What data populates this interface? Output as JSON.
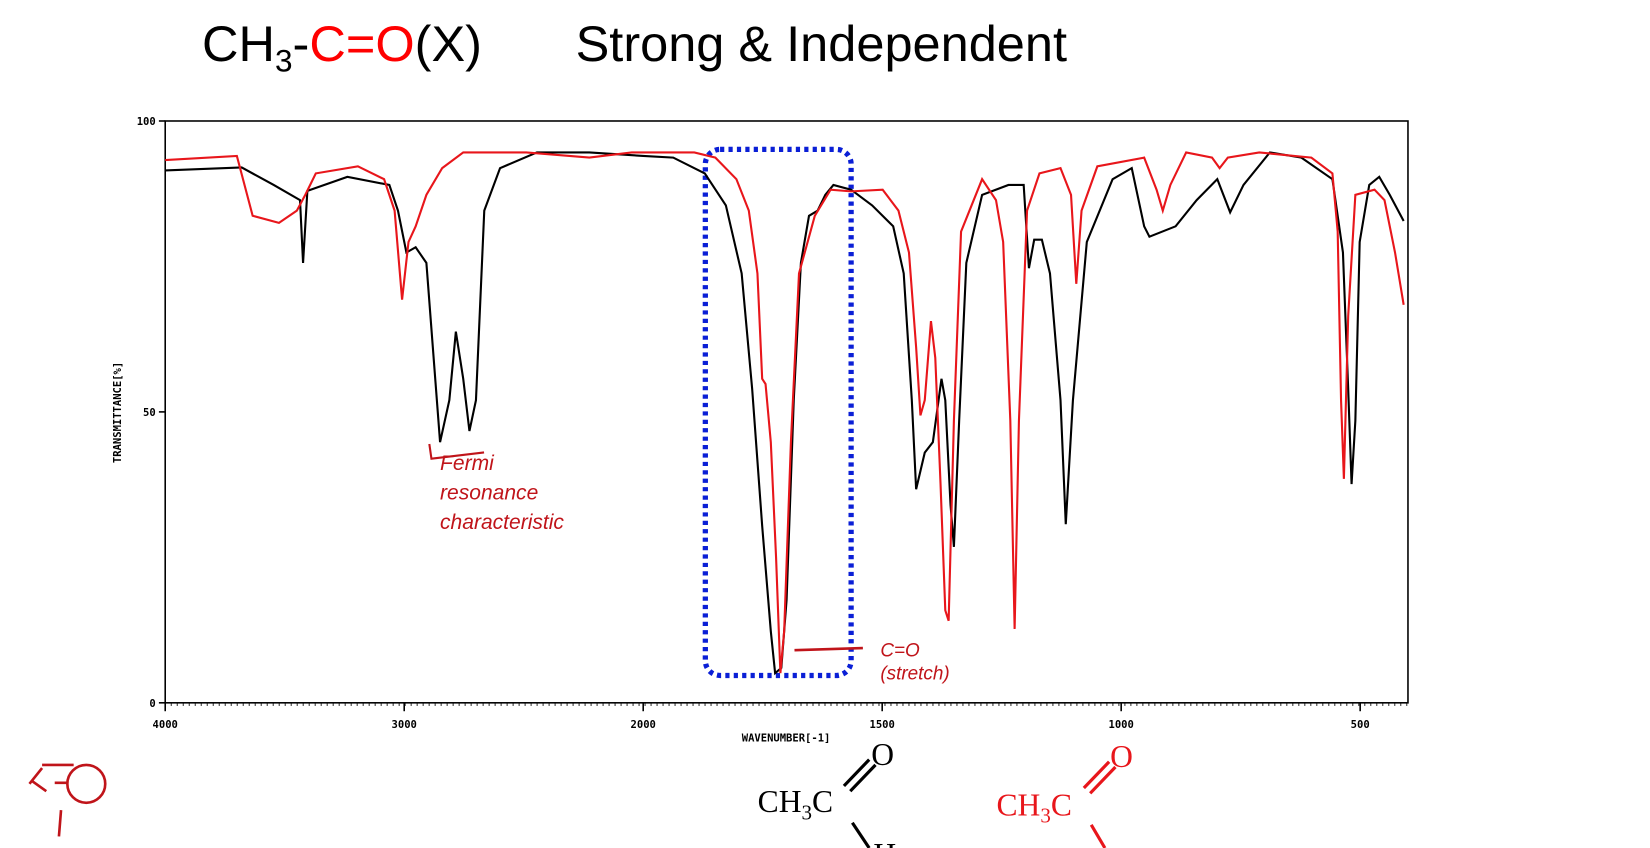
{
  "chart_data": {
    "type": "line",
    "title": [
      "CH",
      "3",
      "-",
      "C=O",
      "(X)",
      "Strong & Independent"
    ],
    "xlabel": "WAVENUMBER[-1]",
    "ylabel": "TRANSMITTANCE[%]",
    "xlim": [
      4000,
      400
    ],
    "x_break": 2000,
    "x_break_stretch": 2,
    "xticks": [
      4000,
      3000,
      2000,
      1500,
      1000,
      500
    ],
    "ylim": [
      0,
      100
    ],
    "yticks": [
      0,
      50,
      100
    ],
    "highlight_box": [
      1870,
      1565
    ],
    "annotations": [
      {
        "lines": [
          "Fermi",
          "resonance",
          "characteristic"
        ],
        "x": 2850,
        "y": 40
      },
      {
        "lines": [
          "C=O",
          "(stretch)"
        ],
        "x": 1680,
        "y": 8
      }
    ],
    "series": [
      {
        "color": "#000000",
        "x": [
          4000,
          3680,
          3546,
          3436,
          3423,
          3405,
          3238,
          3062,
          3026,
          2991,
          2952,
          2907,
          2850,
          2811,
          2784,
          2753,
          2727,
          2700,
          2665,
          2599,
          2445,
          2225,
          2000,
          1937,
          1871,
          1827,
          1794,
          1772,
          1751,
          1733,
          1724,
          1711,
          1700,
          1685,
          1670,
          1653,
          1635,
          1619,
          1602,
          1565,
          1521,
          1477,
          1455,
          1438,
          1429,
          1411,
          1394,
          1376,
          1368,
          1357,
          1350,
          1339,
          1324,
          1291,
          1236,
          1204,
          1193,
          1182,
          1166,
          1149,
          1127,
          1116,
          1101,
          1072,
          1018,
          978,
          952,
          941,
          886,
          842,
          799,
          772,
          744,
          689,
          623,
          558,
          536,
          525,
          518,
          510,
          501,
          481,
          460,
          438,
          409
        ],
        "values": [
          91.5,
          92,
          89,
          86.4,
          75.6,
          88,
          90.4,
          89,
          84.6,
          77.4,
          78.3,
          75.6,
          44.8,
          52,
          63.8,
          55.7,
          46.7,
          52,
          84.6,
          91.9,
          94.6,
          94.6,
          94,
          93.7,
          91,
          85.5,
          73.8,
          53.9,
          30.4,
          12.3,
          5.1,
          6,
          17.7,
          52,
          75.6,
          83.7,
          84.6,
          87.3,
          89,
          88.2,
          85.5,
          81.9,
          73.8,
          52,
          36.7,
          43,
          44.8,
          55.7,
          52,
          34,
          26.8,
          48.5,
          75.6,
          87.3,
          89,
          89,
          74.7,
          79.6,
          79.6,
          73.8,
          52,
          30.7,
          52,
          79.2,
          90,
          91.9,
          81.9,
          80.1,
          81.9,
          86.4,
          90,
          84.3,
          89,
          94.6,
          93.7,
          90,
          77.4,
          53.9,
          37.6,
          48.5,
          79.2,
          89,
          90.4,
          87.3,
          82.8
        ]
      },
      {
        "color": "#e8161b",
        "x": [
          4000,
          3700,
          3634,
          3524,
          3449,
          3414,
          3370,
          3194,
          3084,
          3040,
          3009,
          2982,
          2952,
          2907,
          2841,
          2753,
          2489,
          2225,
          2048,
          2000,
          1893,
          1849,
          1805,
          1779,
          1761,
          1751,
          1744,
          1733,
          1722,
          1713,
          1705,
          1691,
          1674,
          1641,
          1608,
          1565,
          1499,
          1466,
          1444,
          1429,
          1420,
          1411,
          1398,
          1389,
          1378,
          1368,
          1361,
          1350,
          1335,
          1291,
          1262,
          1247,
          1232,
          1223,
          1214,
          1197,
          1171,
          1127,
          1105,
          1094,
          1083,
          1050,
          952,
          926,
          913,
          897,
          864,
          810,
          794,
          777,
          711,
          602,
          558,
          547,
          540,
          534,
          525,
          510,
          470,
          449,
          427,
          409
        ],
        "values": [
          93.3,
          94,
          83.7,
          82.5,
          84.6,
          87.3,
          91,
          92.2,
          90,
          84.6,
          69.3,
          79.2,
          81.9,
          87.3,
          91.9,
          94.6,
          94.6,
          93.7,
          94.6,
          94.6,
          94.6,
          93.7,
          90,
          84.6,
          73.8,
          55.7,
          54.8,
          44.8,
          25,
          5.1,
          12.3,
          44.8,
          73.8,
          83.7,
          88.2,
          87.9,
          88.2,
          84.6,
          77.4,
          61.1,
          49.4,
          52,
          65.6,
          59.3,
          37.6,
          15.9,
          14.1,
          48.5,
          81,
          90,
          86.4,
          79.2,
          48.5,
          12.7,
          48.5,
          84.6,
          91,
          91.9,
          87.3,
          72,
          84.6,
          92.2,
          93.7,
          88.2,
          84.6,
          89,
          94.6,
          93.7,
          91.9,
          93.7,
          94.6,
          93.7,
          91,
          81,
          52,
          38.5,
          66.5,
          87.3,
          88.2,
          86.4,
          77.4,
          68.4
        ]
      }
    ]
  },
  "structures": [
    {
      "parts": [
        "CH",
        "3",
        "C"
      ],
      "top": "O",
      "bottom": "H",
      "color": "#000000"
    },
    {
      "parts": [
        "CH",
        "3",
        "C"
      ],
      "top": "O",
      "color": "#e8161b"
    }
  ]
}
